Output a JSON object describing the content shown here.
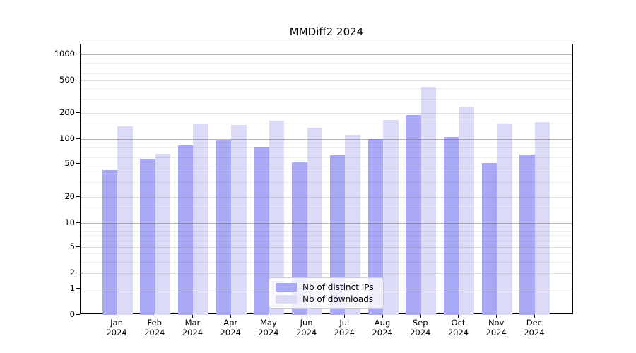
{
  "chart_data": {
    "type": "bar",
    "title": "MMDiff2 2024",
    "categories": [
      "Jan 2024",
      "Feb 2024",
      "Mar 2024",
      "Apr 2024",
      "May 2024",
      "Jun 2024",
      "Jul 2024",
      "Aug 2024",
      "Sep 2024",
      "Oct 2024",
      "Nov 2024",
      "Dec 2024"
    ],
    "series": [
      {
        "name": "Nb of distinct IPs",
        "color": "#a9a9f6",
        "values": [
          42,
          58,
          83,
          96,
          80,
          52,
          63,
          100,
          188,
          105,
          51,
          65
        ]
      },
      {
        "name": "Nb of downloads",
        "color": "#dbdbf8",
        "values": [
          140,
          66,
          148,
          145,
          163,
          135,
          111,
          165,
          415,
          240,
          152,
          156
        ]
      }
    ],
    "xlabel": "",
    "ylabel": "",
    "yscale": "symlog",
    "y_ticks": [
      0,
      1,
      2,
      5,
      10,
      20,
      50,
      100,
      200,
      500,
      1000
    ],
    "ylim": [
      0,
      1500
    ],
    "grid": true,
    "legend_position": "lower center"
  }
}
